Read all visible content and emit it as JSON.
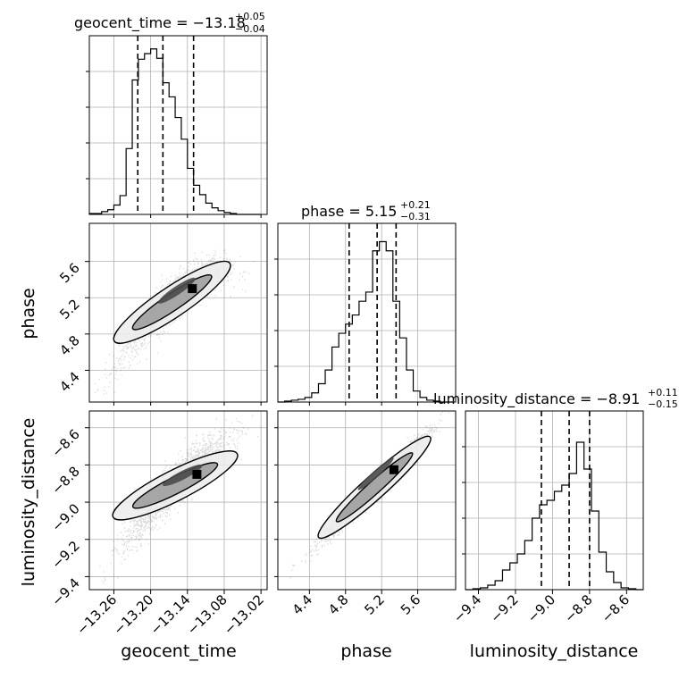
{
  "chart_data": {
    "type": "corner",
    "parameters": [
      "geocent_time",
      "phase",
      "luminosity_distance"
    ],
    "titles": [
      {
        "name": "geocent_time",
        "median": "−13.18",
        "plus": "+0.05",
        "minus": "−0.04"
      },
      {
        "name": "phase",
        "median": "5.15",
        "plus": "+0.21",
        "minus": "−0.31"
      },
      {
        "name": "luminosity_distance",
        "median": "−8.91",
        "plus": "+0.11",
        "minus": "−0.15"
      }
    ],
    "axes": {
      "geocent_time": {
        "range": [
          -13.3,
          -13.01
        ],
        "ticks": [
          -13.26,
          -13.2,
          -13.14,
          -13.08,
          -13.02
        ],
        "tick_labels": [
          "−13.26",
          "−13.20",
          "−13.14",
          "−13.08",
          "−13.02"
        ]
      },
      "phase": {
        "range": [
          4.05,
          6.02
        ],
        "ticks": [
          4.4,
          4.8,
          5.2,
          5.6
        ],
        "tick_labels": [
          "4.4",
          "4.8",
          "5.2",
          "5.6"
        ]
      },
      "luminosity_distance": {
        "range": [
          -9.47,
          -8.51
        ],
        "ticks": [
          -9.4,
          -9.2,
          -9.0,
          -8.8,
          -8.6
        ],
        "tick_labels": [
          "−9.4",
          "−9.2",
          "−9.0",
          "−8.8",
          "−8.6"
        ]
      }
    },
    "histograms": [
      {
        "param": "geocent_time",
        "bin_edges": [
          -13.3,
          -13.29,
          -13.28,
          -13.27,
          -13.26,
          -13.25,
          -13.24,
          -13.23,
          -13.22,
          -13.21,
          -13.2,
          -13.19,
          -13.18,
          -13.17,
          -13.16,
          -13.15,
          -13.14,
          -13.13,
          -13.12,
          -13.11,
          -13.1,
          -13.09,
          -13.08,
          -13.07,
          -13.06,
          -13.05,
          -13.04,
          -13.03,
          -13.02
        ],
        "counts": [
          1,
          1,
          3,
          5,
          10,
          20,
          70,
          143,
          165,
          171,
          176,
          166,
          140,
          125,
          103,
          80,
          49,
          31,
          21,
          12,
          7,
          4,
          2,
          1,
          0,
          0,
          0,
          0
        ],
        "ymax": 190,
        "quantiles": [
          -13.221,
          -13.18,
          -13.13
        ]
      },
      {
        "param": "phase",
        "bin_edges": [
          4.05,
          4.125,
          4.2,
          4.275,
          4.35,
          4.425,
          4.5,
          4.575,
          4.65,
          4.725,
          4.8,
          4.875,
          4.95,
          5.025,
          5.1,
          5.175,
          5.25,
          5.325,
          5.4,
          5.475,
          5.55,
          5.625,
          5.7,
          5.775,
          5.85,
          5.925,
          6.0
        ],
        "counts": [
          0,
          1,
          2,
          3,
          5,
          10,
          20,
          35,
          60,
          75,
          85,
          95,
          110,
          120,
          165,
          175,
          165,
          110,
          70,
          35,
          12,
          5,
          2,
          1,
          0,
          0
        ],
        "ymax": 195,
        "quantiles": [
          4.84,
          5.15,
          5.36
        ]
      },
      {
        "param": "luminosity_distance",
        "bin_edges": [
          -9.47,
          -9.43,
          -9.39,
          -9.35,
          -9.31,
          -9.27,
          -9.23,
          -9.19,
          -9.15,
          -9.11,
          -9.07,
          -9.03,
          -8.99,
          -8.95,
          -8.91,
          -8.87,
          -8.83,
          -8.79,
          -8.75,
          -8.71,
          -8.67,
          -8.63,
          -8.59,
          -8.55,
          -8.51
        ],
        "counts": [
          0,
          1,
          2,
          5,
          10,
          22,
          30,
          40,
          55,
          80,
          95,
          100,
          110,
          117,
          130,
          165,
          135,
          88,
          42,
          20,
          8,
          2,
          1,
          0
        ],
        "ymax": 200,
        "quantiles": [
          -9.06,
          -8.91,
          -8.8
        ]
      }
    ],
    "scatter": [
      {
        "x": "geocent_time",
        "y": "phase"
      },
      {
        "x": "geocent_time",
        "y": "luminosity_distance"
      },
      {
        "x": "phase",
        "y": "luminosity_distance"
      }
    ],
    "grid": true
  }
}
